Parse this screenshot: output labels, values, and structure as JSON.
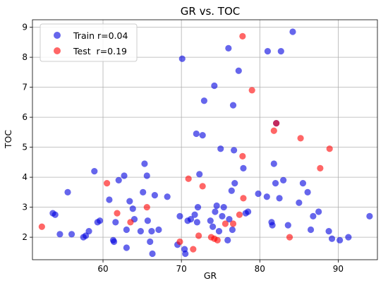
{
  "chart_data": {
    "type": "scatter",
    "title": "GR vs. TOC",
    "xlabel": "GR",
    "ylabel": "TOC",
    "xlim": [
      51,
      95
    ],
    "ylim": [
      1.25,
      9.25
    ],
    "xticks": [
      60,
      70,
      80,
      90
    ],
    "yticks": [
      2,
      3,
      4,
      5,
      6,
      7,
      8,
      9
    ],
    "grid": true,
    "legend": "top-left",
    "series": [
      {
        "name": "Train r=0.04",
        "color": "#0000e0",
        "points": [
          [
            53.6,
            2.8
          ],
          [
            53.9,
            2.75
          ],
          [
            54.5,
            2.1
          ],
          [
            55.5,
            3.5
          ],
          [
            56.0,
            2.1
          ],
          [
            57.5,
            2.0
          ],
          [
            57.8,
            2.05
          ],
          [
            58.2,
            2.2
          ],
          [
            58.9,
            4.2
          ],
          [
            59.3,
            2.5
          ],
          [
            59.6,
            2.55
          ],
          [
            60.8,
            3.25
          ],
          [
            61.3,
            1.9
          ],
          [
            61.4,
            1.85
          ],
          [
            61.6,
            2.5
          ],
          [
            62.0,
            3.9
          ],
          [
            62.7,
            4.05
          ],
          [
            63.0,
            2.25
          ],
          [
            63.0,
            1.65
          ],
          [
            63.4,
            3.2
          ],
          [
            63.8,
            2.95
          ],
          [
            64.0,
            2.6
          ],
          [
            64.8,
            2.2
          ],
          [
            65.1,
            3.5
          ],
          [
            65.3,
            4.45
          ],
          [
            65.6,
            4.05
          ],
          [
            65.7,
            2.55
          ],
          [
            66.0,
            1.85
          ],
          [
            66.2,
            2.2
          ],
          [
            66.3,
            1.45
          ],
          [
            66.6,
            3.4
          ],
          [
            67.1,
            2.25
          ],
          [
            68.2,
            3.35
          ],
          [
            69.5,
            1.75
          ],
          [
            69.8,
            2.7
          ],
          [
            70.1,
            7.95
          ],
          [
            70.4,
            1.6
          ],
          [
            70.5,
            1.45
          ],
          [
            70.8,
            2.55
          ],
          [
            71.2,
            2.6
          ],
          [
            71.7,
            2.75
          ],
          [
            71.9,
            5.45
          ],
          [
            72.0,
            2.5
          ],
          [
            72.1,
            3.0
          ],
          [
            72.3,
            4.1
          ],
          [
            72.7,
            5.4
          ],
          [
            72.9,
            6.55
          ],
          [
            73.7,
            2.55
          ],
          [
            74.0,
            2.35
          ],
          [
            74.2,
            7.05
          ],
          [
            74.3,
            2.85
          ],
          [
            74.5,
            3.05
          ],
          [
            74.8,
            2.2
          ],
          [
            75.0,
            4.95
          ],
          [
            75.2,
            2.7
          ],
          [
            75.4,
            3.0
          ],
          [
            75.9,
            1.9
          ],
          [
            76.0,
            8.3
          ],
          [
            76.1,
            2.6
          ],
          [
            76.4,
            3.55
          ],
          [
            76.5,
            2.25
          ],
          [
            76.6,
            6.4
          ],
          [
            76.7,
            4.9
          ],
          [
            76.8,
            3.8
          ],
          [
            77.3,
            7.55
          ],
          [
            77.9,
            4.3
          ],
          [
            78.2,
            2.8
          ],
          [
            78.5,
            2.85
          ],
          [
            79.8,
            3.45
          ],
          [
            80.9,
            3.35
          ],
          [
            81.0,
            8.2
          ],
          [
            81.5,
            2.5
          ],
          [
            81.6,
            2.4
          ],
          [
            81.8,
            4.45
          ],
          [
            82.0,
            3.8
          ],
          [
            82.1,
            5.8
          ],
          [
            82.5,
            3.3
          ],
          [
            82.7,
            8.2
          ],
          [
            83.0,
            3.9
          ],
          [
            83.6,
            2.4
          ],
          [
            84.2,
            8.85
          ],
          [
            85.0,
            3.15
          ],
          [
            85.5,
            3.8
          ],
          [
            86.1,
            3.5
          ],
          [
            86.5,
            2.25
          ],
          [
            86.8,
            2.7
          ],
          [
            87.5,
            2.85
          ],
          [
            88.8,
            2.2
          ],
          [
            89.2,
            1.95
          ],
          [
            90.2,
            1.9
          ],
          [
            91.3,
            2.0
          ],
          [
            94.0,
            2.7
          ]
        ]
      },
      {
        "name": "Test  r=0.19",
        "color": "#ff0000",
        "points": [
          [
            52.2,
            2.35
          ],
          [
            60.5,
            3.8
          ],
          [
            61.8,
            2.8
          ],
          [
            63.5,
            2.5
          ],
          [
            65.6,
            3.0
          ],
          [
            69.8,
            1.85
          ],
          [
            70.9,
            3.95
          ],
          [
            71.5,
            1.6
          ],
          [
            72.2,
            2.05
          ],
          [
            72.7,
            3.7
          ],
          [
            73.8,
            2.0
          ],
          [
            74.2,
            1.95
          ],
          [
            74.6,
            1.9
          ],
          [
            75.6,
            2.45
          ],
          [
            76.6,
            2.45
          ],
          [
            77.4,
            2.75
          ],
          [
            77.8,
            8.7
          ],
          [
            77.8,
            4.7
          ],
          [
            77.9,
            3.3
          ],
          [
            79.0,
            6.9
          ],
          [
            81.8,
            5.55
          ],
          [
            82.1,
            5.8
          ],
          [
            83.8,
            2.0
          ],
          [
            85.2,
            5.3
          ],
          [
            87.7,
            4.3
          ],
          [
            88.9,
            4.95
          ]
        ]
      }
    ]
  }
}
